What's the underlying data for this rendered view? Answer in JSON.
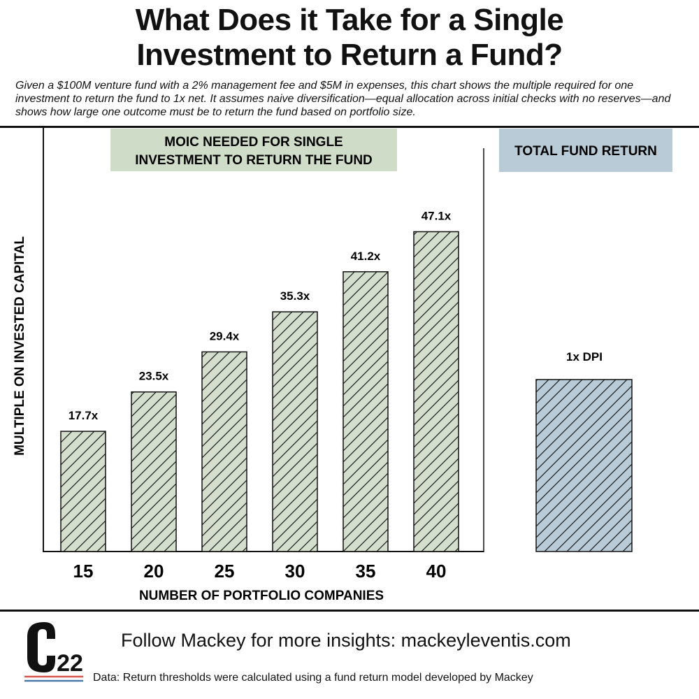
{
  "header": {
    "title_line1": "What Does it Take for a Single",
    "title_line2": "Investment to Return a Fund?",
    "subtitle": "Given a $100M venture fund with a 2% management fee and $5M in expenses, this chart shows the multiple required for one investment to return the fund to 1x net. It assumes naive diversification—equal allocation across initial checks with no reserves—and shows how large one outcome must be to return the fund based on portfolio size."
  },
  "chart_data": [
    {
      "type": "bar",
      "title_line1": "MOIC NEEDED FOR SINGLE",
      "title_line2": "INVESTMENT TO RETURN THE FUND",
      "xlabel": "NUMBER OF PORTFOLIO COMPANIES",
      "ylabel": "MULTIPLE ON INVESTED CAPITAL",
      "categories": [
        "15",
        "20",
        "25",
        "30",
        "35",
        "40"
      ],
      "values": [
        17.7,
        23.5,
        29.4,
        35.3,
        41.2,
        47.1
      ],
      "value_labels": [
        "17.7x",
        "23.5x",
        "29.4x",
        "35.3x",
        "41.2x",
        "47.1x"
      ],
      "ylim": [
        0,
        56
      ],
      "grid": false,
      "color": "#d3dfcc"
    },
    {
      "type": "bar",
      "title": "TOTAL FUND RETURN",
      "categories": [
        ""
      ],
      "value_labels": [
        "1x DPI"
      ],
      "color": "#b9cbd6"
    }
  ],
  "footer": {
    "logo": "C22",
    "follow": "Follow Mackey for more insights: mackeyleventis.com",
    "source": "Data: Return thresholds were calculated using a fund return model developed by Mackey"
  },
  "colors": {
    "moic_title_bg": "#cfdcc7",
    "fund_title_bg": "#b9cbd6",
    "logo_red": "#d9534f",
    "logo_blue": "#4a7aa7"
  }
}
